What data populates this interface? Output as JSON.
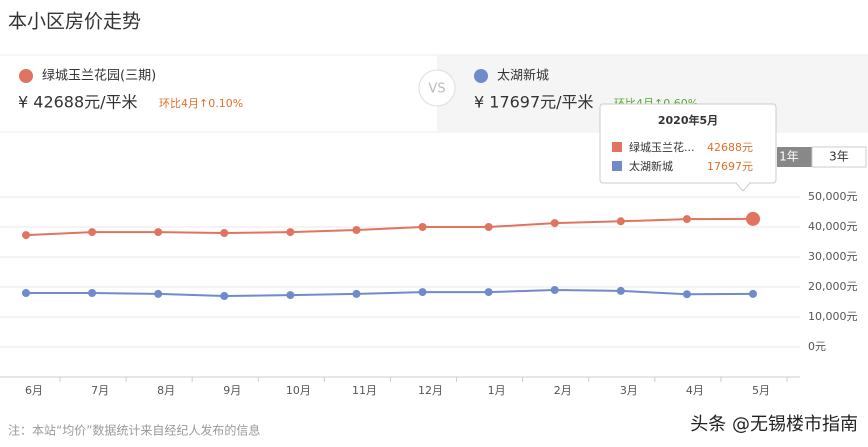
{
  "header": {
    "title": "本小区房价走势"
  },
  "compare": {
    "left": {
      "price": "¥ 42688元/平米",
      "change": "环比4月↑0.10%"
    },
    "vs": "VS",
    "right": {
      "price": "¥ 17697元/平米",
      "change": "环比4月↑0.60%"
    }
  },
  "range_buttons": [
    "1年",
    "3年"
  ],
  "tooltip": {
    "title": "2020年5月",
    "rows": [
      {
        "name": "绿城玉兰花...",
        "value": "42688元"
      },
      {
        "name": "太湖新城",
        "value": "17697元"
      }
    ]
  },
  "chart_data": {
    "type": "line",
    "categories": [
      "6月",
      "7月",
      "8月",
      "9月",
      "10月",
      "11月",
      "12月",
      "1月",
      "2月",
      "3月",
      "4月",
      "5月"
    ],
    "series": [
      {
        "name": "绿城玉兰花园(三期)",
        "color": "#e07461",
        "values": [
          37300,
          38300,
          38300,
          38000,
          38300,
          39000,
          40000,
          40000,
          41300,
          41900,
          42645,
          42688
        ]
      },
      {
        "name": "太湖新城",
        "color": "#6f8bca",
        "values": [
          18000,
          18000,
          17700,
          17000,
          17300,
          17700,
          18300,
          18300,
          19000,
          18700,
          17592,
          17697
        ]
      }
    ],
    "ylim": [
      -10000,
      60000
    ],
    "yticks": [
      {
        "value": 0,
        "label": "0元"
      },
      {
        "value": 10000,
        "label": "10,000元"
      },
      {
        "value": 20000,
        "label": "20,000元"
      },
      {
        "value": 30000,
        "label": "30,000元"
      },
      {
        "value": 40000,
        "label": "40,000元"
      },
      {
        "value": 50000,
        "label": "50,000元"
      }
    ],
    "grid": true
  },
  "footer": {
    "note": "注：本站“均价”数据统计来自经纪人发布的信息",
    "watermark": "头条 @无锡楼市指南"
  }
}
